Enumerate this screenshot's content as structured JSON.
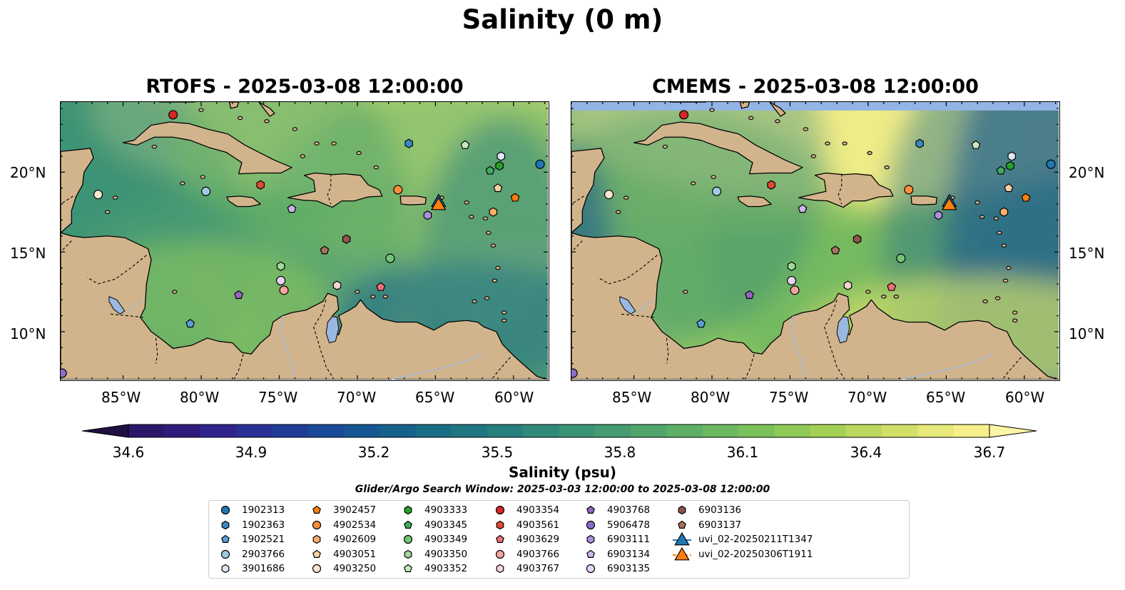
{
  "figure": {
    "suptitle": "Salinity (0 m)",
    "panels": [
      {
        "id": "left",
        "title": "RTOFS - 2025-03-08 12:00:00",
        "palette": "rtofs"
      },
      {
        "id": "right",
        "title": "CMEMS - 2025-03-08 12:00:00",
        "palette": "cmems"
      }
    ],
    "lon_ticks": [
      "85°W",
      "80°W",
      "75°W",
      "70°W",
      "65°W",
      "60°W"
    ],
    "lat_ticks": [
      "20°N",
      "15°N",
      "10°N"
    ],
    "colorbar": {
      "ticks": [
        "34.6",
        "34.9",
        "35.2",
        "35.5",
        "35.8",
        "36.1",
        "36.4",
        "36.7"
      ],
      "label": "Salinity (psu)",
      "colors": [
        "#2b1769",
        "#2f1b7c",
        "#30238c",
        "#2a2f95",
        "#213c98",
        "#1a4a97",
        "#165692",
        "#15618c",
        "#196c86",
        "#1f7682",
        "#277f7e",
        "#30897a",
        "#3a9375",
        "#449c70",
        "#50a56b",
        "#5daf66",
        "#6cb860",
        "#7bc15a",
        "#8ec956",
        "#a4d056",
        "#bbd75d",
        "#d1df69",
        "#e6e879",
        "#f6ef8b"
      ]
    },
    "search_window": "Glider/Argo Search Window: 2025-03-03 12:00:00 to 2025-03-08 12:00:00"
  },
  "legend": [
    {
      "label": "1902313",
      "marker": "circle",
      "color": "#1f77b4"
    },
    {
      "label": "1902363",
      "marker": "hexagon",
      "color": "#3b88c0"
    },
    {
      "label": "1902521",
      "marker": "pentagon",
      "color": "#5b9fd6"
    },
    {
      "label": "2903766",
      "marker": "circle",
      "color": "#9ecae1"
    },
    {
      "label": "3901686",
      "marker": "hexagon",
      "color": "#dbe9f6"
    },
    {
      "label": "3902457",
      "marker": "pentagon",
      "color": "#ff7f0e"
    },
    {
      "label": "4902534",
      "marker": "circle",
      "color": "#fd8d3c"
    },
    {
      "label": "4902609",
      "marker": "hexagon",
      "color": "#fdae6b"
    },
    {
      "label": "4903051",
      "marker": "pentagon",
      "color": "#fdd0a2"
    },
    {
      "label": "4903250",
      "marker": "circle",
      "color": "#fee6ce"
    },
    {
      "label": "4903333",
      "marker": "hexagon",
      "color": "#2ca02c"
    },
    {
      "label": "4903345",
      "marker": "pentagon",
      "color": "#41ab5d"
    },
    {
      "label": "4903349",
      "marker": "circle",
      "color": "#74c476"
    },
    {
      "label": "4903350",
      "marker": "hexagon",
      "color": "#a1d99b"
    },
    {
      "label": "4903352",
      "marker": "pentagon",
      "color": "#c7e9c0"
    },
    {
      "label": "4903354",
      "marker": "circle",
      "color": "#d62728"
    },
    {
      "label": "4903561",
      "marker": "hexagon",
      "color": "#e34a33"
    },
    {
      "label": "4903629",
      "marker": "pentagon",
      "color": "#f0707a"
    },
    {
      "label": "4903766",
      "marker": "circle",
      "color": "#f4a3a0"
    },
    {
      "label": "4903767",
      "marker": "hexagon",
      "color": "#fbd3d3"
    },
    {
      "label": "4903768",
      "marker": "pentagon",
      "color": "#9467bd"
    },
    {
      "label": "5906478",
      "marker": "circle",
      "color": "#8c6bc8"
    },
    {
      "label": "6903111",
      "marker": "hexagon",
      "color": "#ad8fdd"
    },
    {
      "label": "6903134",
      "marker": "pentagon",
      "color": "#cbb4ee"
    },
    {
      "label": "6903135",
      "marker": "circle",
      "color": "#e7d3f7"
    },
    {
      "label": "6903136",
      "marker": "hexagon",
      "color": "#8c564b"
    },
    {
      "label": "6903137",
      "marker": "pentagon",
      "color": "#a6725c"
    },
    {
      "label": "uvi_02-20250211T1347",
      "marker": "triangle",
      "color": "#1f77b4"
    },
    {
      "label": "uvi_02-20250306T1911",
      "marker": "triangle",
      "color": "#ff7f0e"
    }
  ],
  "observations": [
    {
      "platform": "1902313",
      "lon": -58.3,
      "lat": 20.5
    },
    {
      "platform": "1902363",
      "lon": -66.7,
      "lat": 21.8
    },
    {
      "platform": "1902521",
      "lon": -80.7,
      "lat": 10.5
    },
    {
      "platform": "2903766",
      "lon": -79.7,
      "lat": 18.8
    },
    {
      "platform": "3901686",
      "lon": -60.8,
      "lat": 21.0
    },
    {
      "platform": "3902457",
      "lon": -59.9,
      "lat": 18.4
    },
    {
      "platform": "4902534",
      "lon": -67.4,
      "lat": 18.9
    },
    {
      "platform": "4902609",
      "lon": -61.3,
      "lat": 17.5
    },
    {
      "platform": "4903051",
      "lon": -61.0,
      "lat": 19.0
    },
    {
      "platform": "4903250",
      "lon": -86.6,
      "lat": 18.6
    },
    {
      "platform": "4903333",
      "lon": -60.9,
      "lat": 20.4
    },
    {
      "platform": "4903345",
      "lon": -61.5,
      "lat": 20.1
    },
    {
      "platform": "4903349",
      "lon": -67.9,
      "lat": 14.6
    },
    {
      "platform": "4903350",
      "lon": -74.9,
      "lat": 14.1
    },
    {
      "platform": "4903352",
      "lon": -63.1,
      "lat": 21.7
    },
    {
      "platform": "4903354",
      "lon": -81.8,
      "lat": 23.6
    },
    {
      "platform": "4903561",
      "lon": -76.2,
      "lat": 19.2
    },
    {
      "platform": "4903629",
      "lon": -68.5,
      "lat": 12.8
    },
    {
      "platform": "4903766",
      "lon": -74.7,
      "lat": 12.6
    },
    {
      "platform": "4903767",
      "lon": -71.3,
      "lat": 12.9
    },
    {
      "platform": "4903768",
      "lon": -77.6,
      "lat": 12.3
    },
    {
      "platform": "5906478",
      "lon": -88.9,
      "lat": 7.4
    },
    {
      "platform": "6903111",
      "lon": -65.5,
      "lat": 17.3
    },
    {
      "platform": "6903134",
      "lon": -74.2,
      "lat": 17.7
    },
    {
      "platform": "6903135",
      "lon": -74.9,
      "lat": 13.2
    },
    {
      "platform": "6903136",
      "lon": -70.7,
      "lat": 15.8
    },
    {
      "platform": "6903137",
      "lon": -72.1,
      "lat": 15.1
    },
    {
      "platform": "uvi_02-20250211T1347",
      "lon": -64.8,
      "lat": 18.2
    },
    {
      "platform": "uvi_02-20250306T1911",
      "lon": -64.8,
      "lat": 18.0
    }
  ]
}
